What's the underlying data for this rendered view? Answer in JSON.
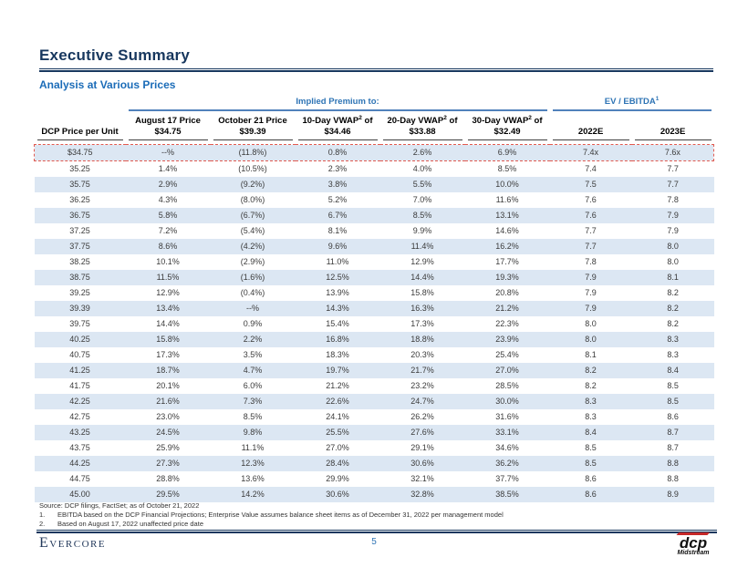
{
  "page": {
    "title": "Executive Summary",
    "subtitle": "Analysis at Various Prices",
    "page_number": "5",
    "footer_brand": "Evercore",
    "logo": {
      "line1": "dcp",
      "line2": "Midstream"
    }
  },
  "colors": {
    "title_navy": "#17375E",
    "subtitle_blue": "#1B6CB8",
    "group_header_blue": "#2E74B5",
    "group_underline_blue": "#5081BB",
    "band_blue": "#DCE7F3",
    "highlight_dash_red": "#E25A50"
  },
  "table": {
    "group_headers": [
      {
        "label": "Implied Premium to:",
        "span": 5
      },
      {
        "label": "EV / EBITDA",
        "sup": "1",
        "span": 2
      }
    ],
    "columns": [
      {
        "label": "DCP Price per Unit"
      },
      {
        "label": "August 17 Price",
        "value": "$34.75"
      },
      {
        "label": "October 21 Price",
        "value": "$39.39"
      },
      {
        "label": "10-Day VWAP",
        "sup": "2",
        "label_suffix": " of",
        "value": "$34.46"
      },
      {
        "label": "20-Day VWAP",
        "sup": "2",
        "label_suffix": " of",
        "value": "$33.88"
      },
      {
        "label": "30-Day VWAP",
        "sup": "2",
        "label_suffix": " of",
        "value": "$32.49"
      },
      {
        "label": "2022E"
      },
      {
        "label": "2023E"
      }
    ],
    "highlighted_row": 0,
    "rows": [
      [
        "$34.75",
        "--%",
        "(11.8%)",
        "0.8%",
        "2.6%",
        "6.9%",
        "7.4x",
        "7.6x"
      ],
      [
        "35.25",
        "1.4%",
        "(10.5%)",
        "2.3%",
        "4.0%",
        "8.5%",
        "7.4",
        "7.7"
      ],
      [
        "35.75",
        "2.9%",
        "(9.2%)",
        "3.8%",
        "5.5%",
        "10.0%",
        "7.5",
        "7.7"
      ],
      [
        "36.25",
        "4.3%",
        "(8.0%)",
        "5.2%",
        "7.0%",
        "11.6%",
        "7.6",
        "7.8"
      ],
      [
        "36.75",
        "5.8%",
        "(6.7%)",
        "6.7%",
        "8.5%",
        "13.1%",
        "7.6",
        "7.9"
      ],
      [
        "37.25",
        "7.2%",
        "(5.4%)",
        "8.1%",
        "9.9%",
        "14.6%",
        "7.7",
        "7.9"
      ],
      [
        "37.75",
        "8.6%",
        "(4.2%)",
        "9.6%",
        "11.4%",
        "16.2%",
        "7.7",
        "8.0"
      ],
      [
        "38.25",
        "10.1%",
        "(2.9%)",
        "11.0%",
        "12.9%",
        "17.7%",
        "7.8",
        "8.0"
      ],
      [
        "38.75",
        "11.5%",
        "(1.6%)",
        "12.5%",
        "14.4%",
        "19.3%",
        "7.9",
        "8.1"
      ],
      [
        "39.25",
        "12.9%",
        "(0.4%)",
        "13.9%",
        "15.8%",
        "20.8%",
        "7.9",
        "8.2"
      ],
      [
        "39.39",
        "13.4%",
        "--%",
        "14.3%",
        "16.3%",
        "21.2%",
        "7.9",
        "8.2"
      ],
      [
        "39.75",
        "14.4%",
        "0.9%",
        "15.4%",
        "17.3%",
        "22.3%",
        "8.0",
        "8.2"
      ],
      [
        "40.25",
        "15.8%",
        "2.2%",
        "16.8%",
        "18.8%",
        "23.9%",
        "8.0",
        "8.3"
      ],
      [
        "40.75",
        "17.3%",
        "3.5%",
        "18.3%",
        "20.3%",
        "25.4%",
        "8.1",
        "8.3"
      ],
      [
        "41.25",
        "18.7%",
        "4.7%",
        "19.7%",
        "21.7%",
        "27.0%",
        "8.2",
        "8.4"
      ],
      [
        "41.75",
        "20.1%",
        "6.0%",
        "21.2%",
        "23.2%",
        "28.5%",
        "8.2",
        "8.5"
      ],
      [
        "42.25",
        "21.6%",
        "7.3%",
        "22.6%",
        "24.7%",
        "30.0%",
        "8.3",
        "8.5"
      ],
      [
        "42.75",
        "23.0%",
        "8.5%",
        "24.1%",
        "26.2%",
        "31.6%",
        "8.3",
        "8.6"
      ],
      [
        "43.25",
        "24.5%",
        "9.8%",
        "25.5%",
        "27.6%",
        "33.1%",
        "8.4",
        "8.7"
      ],
      [
        "43.75",
        "25.9%",
        "11.1%",
        "27.0%",
        "29.1%",
        "34.6%",
        "8.5",
        "8.7"
      ],
      [
        "44.25",
        "27.3%",
        "12.3%",
        "28.4%",
        "30.6%",
        "36.2%",
        "8.5",
        "8.8"
      ],
      [
        "44.75",
        "28.8%",
        "13.6%",
        "29.9%",
        "32.1%",
        "37.7%",
        "8.6",
        "8.8"
      ],
      [
        "45.00",
        "29.5%",
        "14.2%",
        "30.6%",
        "32.8%",
        "38.5%",
        "8.6",
        "8.9"
      ]
    ]
  },
  "footnotes": {
    "source": "Source: DCP filings, FactSet; as of October 21, 2022",
    "items": [
      {
        "num": "1.",
        "text": "EBITDA based on the DCP Financial Projections; Enterprise Value assumes balance sheet items as of December 31, 2022 per management model"
      },
      {
        "num": "2.",
        "text": "Based on August 17, 2022 unaffected price date"
      }
    ]
  }
}
